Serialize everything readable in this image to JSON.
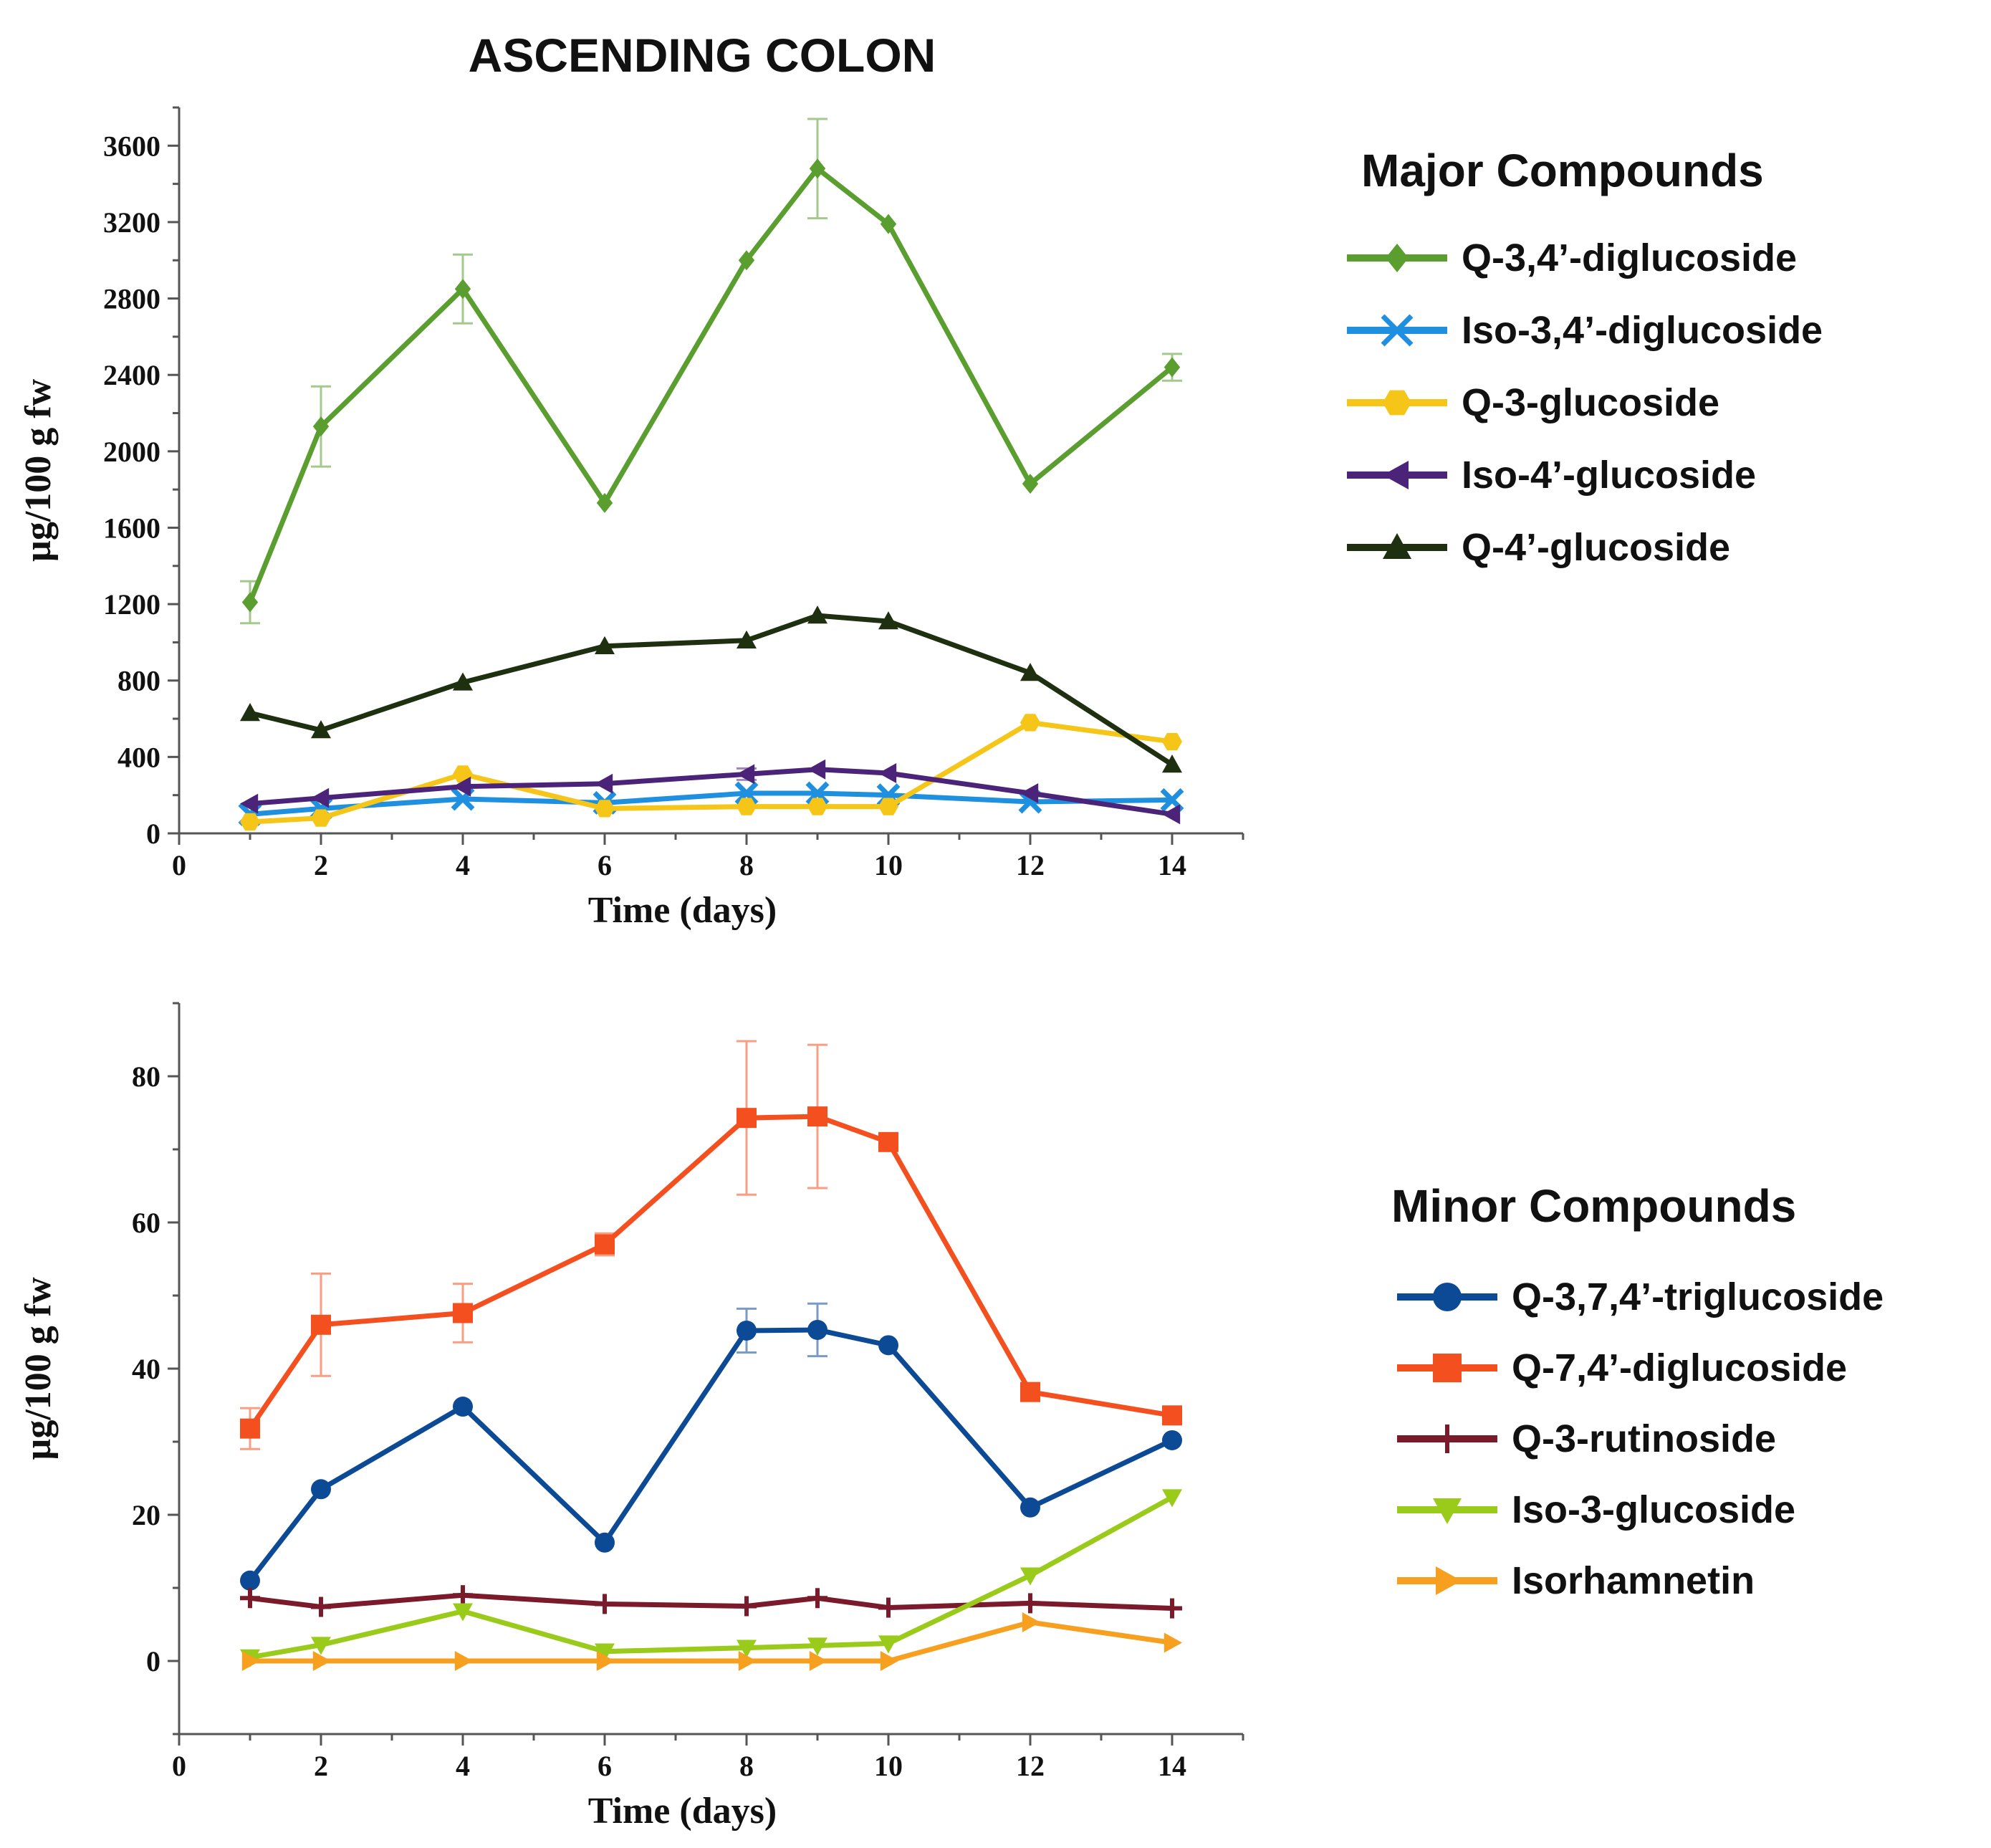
{
  "figure_title": "ASCENDING COLON",
  "chart_data": [
    {
      "type": "line",
      "panel": "major",
      "legend_title": "Major Compounds",
      "xlabel": "Time  (days)",
      "ylabel": "µg/100 g fw",
      "xlim": [
        0,
        15
      ],
      "ylim": [
        0,
        3800
      ],
      "x_ticks": [
        0,
        2,
        4,
        6,
        8,
        10,
        12,
        14
      ],
      "y_ticks": [
        0,
        400,
        800,
        1200,
        1600,
        2000,
        2400,
        2800,
        3200,
        3600
      ],
      "x": [
        1,
        2,
        4,
        6,
        8,
        9,
        10,
        12,
        14
      ],
      "series": [
        {
          "name": "Q-3,4’-diglucoside",
          "color": "#5a9e2f",
          "marker": "diamond",
          "values": [
            1210,
            2130,
            2850,
            1730,
            3000,
            3480,
            3190,
            1830,
            2440
          ],
          "errors": [
            110,
            210,
            180,
            0,
            0,
            260,
            0,
            0,
            70
          ]
        },
        {
          "name": "Iso-3,4’-diglucoside",
          "color": "#1f8fe0",
          "marker": "x",
          "values": [
            100,
            130,
            180,
            160,
            210,
            210,
            200,
            165,
            175
          ],
          "errors": [
            0,
            0,
            0,
            0,
            0,
            0,
            0,
            0,
            0
          ]
        },
        {
          "name": "Q-3-glucoside",
          "color": "#f5c518",
          "marker": "hexagon",
          "values": [
            60,
            80,
            310,
            130,
            140,
            140,
            140,
            580,
            480
          ],
          "errors": [
            0,
            0,
            0,
            0,
            0,
            0,
            0,
            0,
            0
          ]
        },
        {
          "name": "Iso-4’-glucoside",
          "color": "#4b2479",
          "marker": "triangle-left",
          "values": [
            155,
            185,
            245,
            260,
            310,
            335,
            315,
            210,
            100
          ],
          "errors": [
            0,
            0,
            0,
            0,
            30,
            0,
            0,
            0,
            0
          ]
        },
        {
          "name": "Q-4’-glucoside",
          "color": "#1e3010",
          "marker": "triangle-up",
          "values": [
            630,
            540,
            790,
            980,
            1010,
            1140,
            1110,
            840,
            360
          ],
          "errors": [
            0,
            0,
            0,
            0,
            0,
            0,
            0,
            0,
            0
          ]
        }
      ]
    },
    {
      "type": "line",
      "panel": "minor",
      "legend_title": "Minor Compounds",
      "xlabel": "Time (days)",
      "ylabel": "µg/100 g fw",
      "xlim": [
        0,
        15
      ],
      "ylim": [
        -10,
        90
      ],
      "x_ticks": [
        0,
        2,
        4,
        6,
        8,
        10,
        12,
        14
      ],
      "y_ticks": [
        0,
        20,
        40,
        60,
        80
      ],
      "x": [
        1,
        2,
        4,
        6,
        8,
        9,
        10,
        12,
        14
      ],
      "series": [
        {
          "name": "Q-3,7,4’-triglucoside",
          "color": "#0d4a96",
          "marker": "circle",
          "values": [
            11,
            23.5,
            34.8,
            16.2,
            45.2,
            45.3,
            43.2,
            21,
            30.2
          ],
          "errors": [
            0,
            0,
            0,
            0,
            3,
            3.6,
            0,
            0,
            0
          ]
        },
        {
          "name": "Q-7,4’-diglucoside",
          "color": "#f4501f",
          "marker": "square",
          "values": [
            31.8,
            46,
            47.6,
            57,
            74.3,
            74.5,
            71,
            36.8,
            33.6
          ],
          "errors": [
            2.8,
            7,
            4,
            1.5,
            10.5,
            9.8,
            0,
            0,
            1.2
          ]
        },
        {
          "name": "Q-3-rutinoside",
          "color": "#7a1a2a",
          "marker": "plus",
          "values": [
            8.6,
            7.4,
            9,
            7.8,
            7.5,
            8.6,
            7.3,
            7.9,
            7.2
          ],
          "errors": [
            0,
            0,
            0,
            0,
            0,
            0,
            0,
            0,
            0
          ]
        },
        {
          "name": "Iso-3-glucoside",
          "color": "#9bcb1a",
          "marker": "triangle-down",
          "values": [
            0.5,
            2.2,
            6.8,
            1.3,
            1.8,
            2.1,
            2.4,
            11.7,
            22.4
          ],
          "errors": [
            0,
            0,
            0,
            0,
            0,
            0,
            0,
            0,
            0
          ]
        },
        {
          "name": "Isorhamnetin",
          "color": "#f7a020",
          "marker": "triangle-right",
          "values": [
            0,
            0,
            0,
            0,
            0,
            0,
            0,
            5.3,
            2.5
          ],
          "errors": [
            0,
            0,
            0,
            0,
            0,
            0,
            0,
            0,
            0
          ]
        }
      ]
    }
  ]
}
